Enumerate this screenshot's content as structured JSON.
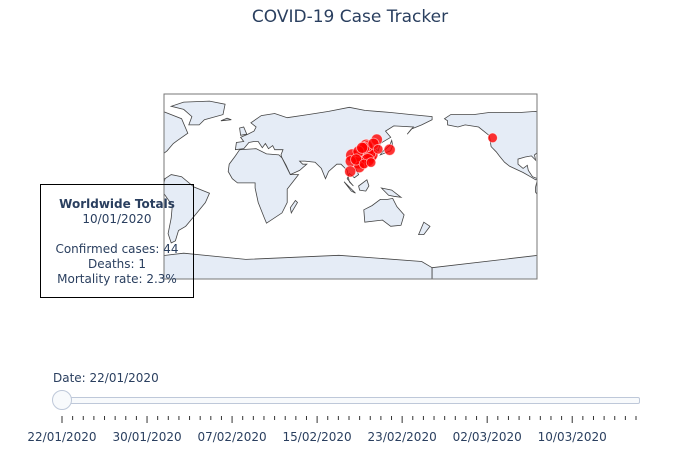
{
  "title": "COVID-19 Case Tracker",
  "colors": {
    "land": "#e5ecf6",
    "ocean": "#ffffff",
    "coast": "#444444",
    "marker": "#ff0000",
    "text": "#2a3f5f"
  },
  "totals": {
    "heading": "Worldwide Totals",
    "date": "10/01/2020",
    "confirmed": "Confirmed cases: 44",
    "deaths": "Deaths: 1",
    "mortality": "Mortality rate: 2.3%"
  },
  "slider": {
    "current_label": "Date: 22/01/2020",
    "current_index": 0,
    "steps_count": 54,
    "major_every": 8,
    "tick_labels": [
      "22/01/2020",
      "30/01/2020",
      "07/02/2020",
      "15/02/2020",
      "23/02/2020",
      "02/03/2020",
      "10/03/2020"
    ]
  },
  "chart_data": {
    "type": "scattergeo",
    "projection": "equirectangular",
    "points": [
      {
        "lon": 112.3,
        "lat": 30.9,
        "size": 10
      },
      {
        "lon": 113.4,
        "lat": 23.3,
        "size": 8
      },
      {
        "lon": 120.1,
        "lat": 29.2,
        "size": 8
      },
      {
        "lon": 116.4,
        "lat": 40.0,
        "size": 8
      },
      {
        "lon": 121.5,
        "lat": 31.2,
        "size": 8
      },
      {
        "lon": 107.9,
        "lat": 30.1,
        "size": 8
      },
      {
        "lon": 102.7,
        "lat": 30.6,
        "size": 8
      },
      {
        "lon": 113.6,
        "lat": 33.9,
        "size": 8
      },
      {
        "lon": 111.7,
        "lat": 27.6,
        "size": 8
      },
      {
        "lon": 117.2,
        "lat": 31.8,
        "size": 8
      },
      {
        "lon": 115.7,
        "lat": 27.6,
        "size": 8
      },
      {
        "lon": 118.1,
        "lat": 36.3,
        "size": 8
      },
      {
        "lon": 119.5,
        "lat": 32.9,
        "size": 8
      },
      {
        "lon": 117.9,
        "lat": 26.1,
        "size": 8
      },
      {
        "lon": 108.8,
        "lat": 23.8,
        "size": 8
      },
      {
        "lon": 101.5,
        "lat": 24.9,
        "size": 7
      },
      {
        "lon": 109.7,
        "lat": 19.2,
        "size": 7
      },
      {
        "lon": 117.3,
        "lat": 39.3,
        "size": 7
      },
      {
        "lon": 114.5,
        "lat": 38.0,
        "size": 7
      },
      {
        "lon": 126.6,
        "lat": 45.8,
        "size": 7
      },
      {
        "lon": 123.4,
        "lat": 41.8,
        "size": 7
      },
      {
        "lon": 108.9,
        "lat": 34.3,
        "size": 7
      },
      {
        "lon": 106.7,
        "lat": 26.6,
        "size": 7
      },
      {
        "lon": 112.5,
        "lat": 37.9,
        "size": 7
      },
      {
        "lon": 114.2,
        "lat": 22.3,
        "size": 6
      },
      {
        "lon": 121.0,
        "lat": 23.7,
        "size": 6
      },
      {
        "lon": 127.9,
        "lat": 36.5,
        "size": 6
      },
      {
        "lon": 139.0,
        "lat": 36.0,
        "size": 7
      },
      {
        "lon": 100.9,
        "lat": 15.0,
        "size": 7
      },
      {
        "lon": -121.5,
        "lat": 47.5,
        "size": 6
      }
    ]
  }
}
